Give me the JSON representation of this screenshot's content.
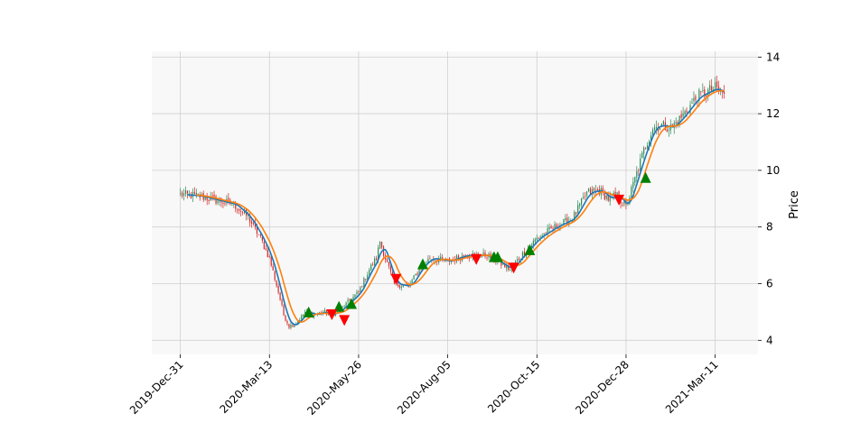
{
  "chart_data": {
    "type": "candlestick",
    "title": "",
    "xlabel": "",
    "ylabel": "Price",
    "ylim": [
      3.5,
      14.2
    ],
    "y_ticks": [
      4,
      6,
      8,
      10,
      12,
      14
    ],
    "x_ticks": [
      "2019-Dec-31",
      "2020-Mar-13",
      "2020-May-26",
      "2020-Aug-05",
      "2020-Oct-15",
      "2020-Dec-28",
      "2021-Mar-11"
    ],
    "x_tick_index": [
      0,
      50,
      100,
      150,
      200,
      250,
      300
    ],
    "x_range": [
      -16,
      324
    ],
    "grid": true,
    "price_anchors": [
      [
        0,
        9.15
      ],
      [
        10,
        9.1
      ],
      [
        20,
        8.95
      ],
      [
        30,
        8.8
      ],
      [
        38,
        8.35
      ],
      [
        45,
        7.6
      ],
      [
        50,
        6.9
      ],
      [
        55,
        5.7
      ],
      [
        58,
        4.9
      ],
      [
        61,
        4.5
      ],
      [
        65,
        4.6
      ],
      [
        70,
        5.0
      ],
      [
        75,
        4.9
      ],
      [
        80,
        5.0
      ],
      [
        85,
        4.9
      ],
      [
        90,
        5.1
      ],
      [
        95,
        5.4
      ],
      [
        100,
        5.7
      ],
      [
        106,
        6.5
      ],
      [
        110,
        6.9
      ],
      [
        112,
        7.5
      ],
      [
        115,
        6.9
      ],
      [
        120,
        6.0
      ],
      [
        128,
        5.9
      ],
      [
        135,
        6.6
      ],
      [
        140,
        6.9
      ],
      [
        150,
        6.8
      ],
      [
        160,
        7.0
      ],
      [
        172,
        7.0
      ],
      [
        185,
        6.5
      ],
      [
        190,
        6.9
      ],
      [
        200,
        7.6
      ],
      [
        210,
        8.0
      ],
      [
        220,
        8.3
      ],
      [
        228,
        9.2
      ],
      [
        235,
        9.3
      ],
      [
        240,
        9.0
      ],
      [
        245,
        9.1
      ],
      [
        250,
        8.7
      ],
      [
        255,
        9.7
      ],
      [
        260,
        10.7
      ],
      [
        265,
        11.5
      ],
      [
        270,
        11.6
      ],
      [
        275,
        11.5
      ],
      [
        280,
        11.8
      ],
      [
        290,
        12.6
      ],
      [
        300,
        12.9
      ],
      [
        305,
        12.7
      ]
    ],
    "moving_averages": [
      {
        "window": 5,
        "color": "#1f77b4"
      },
      {
        "window": 10,
        "color": "#ff7f0e"
      }
    ],
    "markers": {
      "buy": [
        {
          "x": 72,
          "y": 5.0
        },
        {
          "x": 89,
          "y": 5.2
        },
        {
          "x": 96,
          "y": 5.3
        },
        {
          "x": 136,
          "y": 6.7
        },
        {
          "x": 176,
          "y": 6.95
        },
        {
          "x": 178,
          "y": 6.95
        },
        {
          "x": 196,
          "y": 7.2
        },
        {
          "x": 261,
          "y": 9.75
        }
      ],
      "sell": [
        {
          "x": 85,
          "y": 4.9
        },
        {
          "x": 92,
          "y": 4.7
        },
        {
          "x": 121,
          "y": 6.15
        },
        {
          "x": 166,
          "y": 6.85
        },
        {
          "x": 187,
          "y": 6.55
        },
        {
          "x": 246,
          "y": 8.95
        }
      ]
    },
    "colors": {
      "up": "#2e8b57",
      "down": "#d62728",
      "buy_marker": "#008000",
      "sell_marker": "#ff0000",
      "plot_bg": "#f8f8f8",
      "grid": "#cfcfcf"
    }
  }
}
